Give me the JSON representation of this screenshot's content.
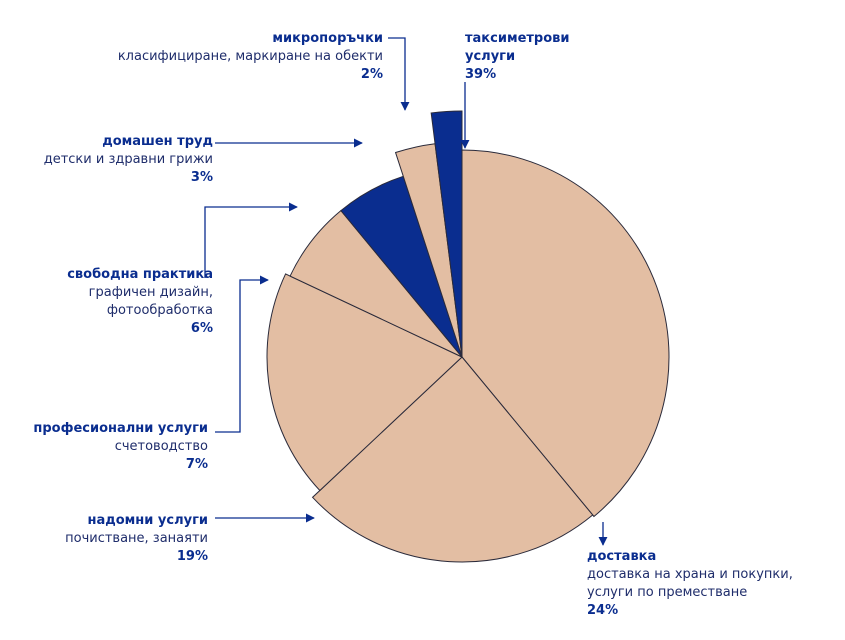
{
  "chart_data": {
    "type": "pie",
    "categories": [
      "таксиметрови услуги",
      "доставка",
      "надомни услуги",
      "професионални услуги",
      "свободна практика",
      "домашен труд",
      "микропоръчки"
    ],
    "descriptions": [
      null,
      "доставка на храна и покупки, услуги по преместване",
      "почистване, занаяти",
      "счетоводство",
      "графичен дизайн, фотообработка",
      "детски и здравни грижи",
      "класифициране, маркиране на обекти"
    ],
    "values": [
      39,
      24,
      19,
      7,
      6,
      3,
      2
    ],
    "value_labels": [
      "39%",
      "24%",
      "19%",
      "7%",
      "6%",
      "3%",
      "2%"
    ],
    "colors": [
      "#e3bea3",
      "#e3bea3",
      "#e3bea3",
      "#e3bea3",
      "#0a2d8f",
      "#e3bea3",
      "#0a2d8f"
    ]
  }
}
